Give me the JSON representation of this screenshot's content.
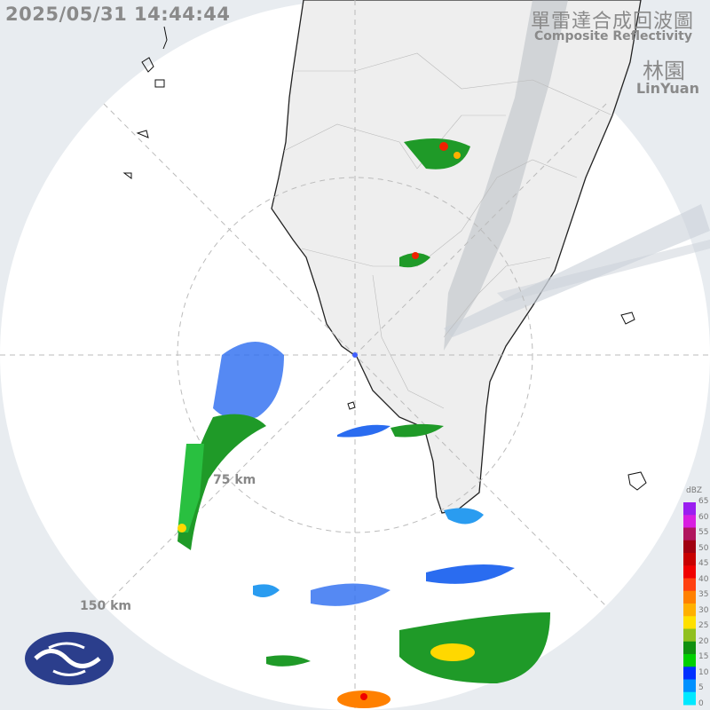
{
  "header": {
    "timestamp": "2025/05/31 14:44:44",
    "title_zh": "單雷達合成回波圖",
    "title_en": "Composite Reflectivity",
    "station_zh": "林園",
    "station_en": "LinYuan"
  },
  "range_rings": {
    "inner_label": "75 km",
    "outer_label": "150 km"
  },
  "colorbar": {
    "unit": "dBZ",
    "ticks": [
      "65",
      "60",
      "55",
      "50",
      "45",
      "40",
      "35",
      "30",
      "25",
      "20",
      "15",
      "10",
      "5",
      "0"
    ],
    "colors": [
      "#9a1ef0",
      "#d81ee0",
      "#b0155e",
      "#a00010",
      "#c80000",
      "#f00000",
      "#ff4010",
      "#ff8000",
      "#ffb000",
      "#ffe000",
      "#90c020",
      "#109010",
      "#00d000",
      "#0030ff",
      "#0090ff",
      "#00e8ff"
    ]
  },
  "logo": "cwa-logo"
}
